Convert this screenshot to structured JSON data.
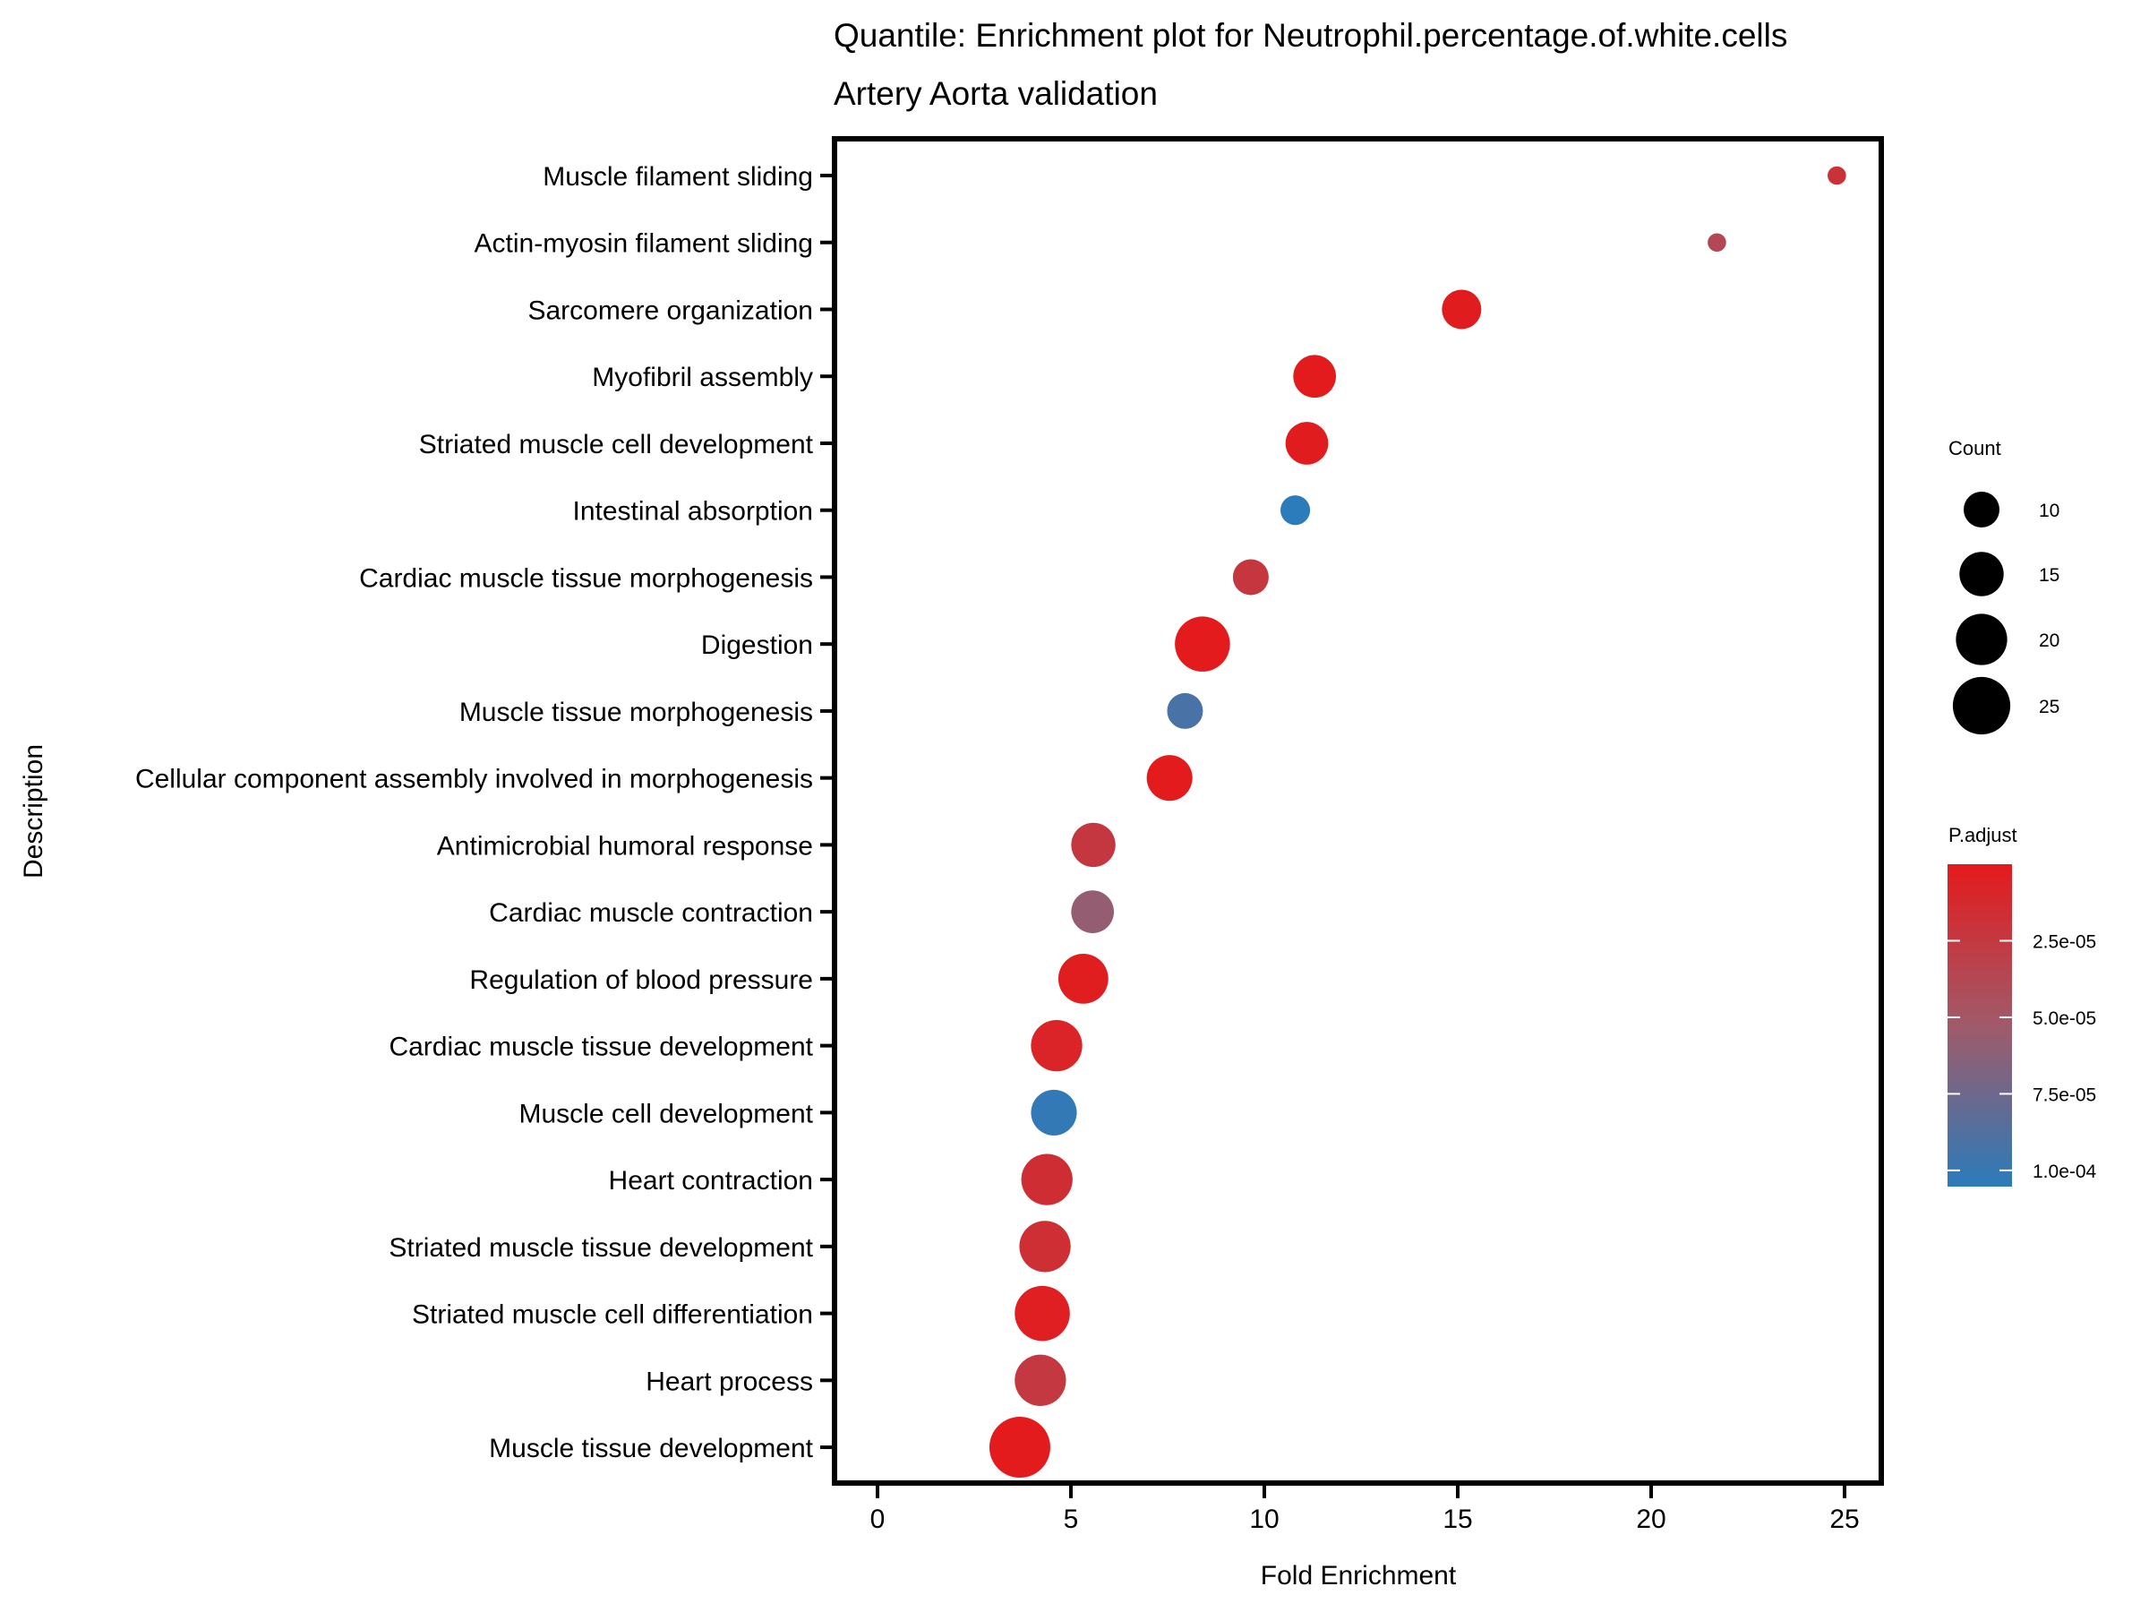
{
  "chart_data": {
    "type": "scatter",
    "title": "Quantile: Enrichment plot for Neutrophil.percentage.of.white.cells",
    "subtitle": "Artery Aorta validation",
    "xlabel": "Fold Enrichment",
    "ylabel": "Description",
    "xlim": [
      -1.1,
      26
    ],
    "xticks": [
      0,
      5,
      10,
      15,
      20,
      25
    ],
    "xtick_labels": [
      "0",
      "5",
      "10",
      "15",
      "20",
      "25"
    ],
    "grid": false,
    "points": [
      {
        "description": "Muscle filament sliding",
        "fold_enrichment": 24.8,
        "count": 3,
        "p_adjust": 2e-05
      },
      {
        "description": "Actin-myosin filament sliding",
        "fold_enrichment": 21.7,
        "count": 3,
        "p_adjust": 3.8e-05
      },
      {
        "description": "Sarcomere organization",
        "fold_enrichment": 15.1,
        "count": 12,
        "p_adjust": 2e-06
      },
      {
        "description": "Myofibril assembly",
        "fold_enrichment": 11.3,
        "count": 14,
        "p_adjust": 1e-06
      },
      {
        "description": "Striated muscle cell development",
        "fold_enrichment": 11.1,
        "count": 14,
        "p_adjust": 2e-06
      },
      {
        "description": "Intestinal absorption",
        "fold_enrichment": 10.8,
        "count": 7,
        "p_adjust": 0.000105
      },
      {
        "description": "Cardiac muscle tissue morphogenesis",
        "fold_enrichment": 9.65,
        "count": 10,
        "p_adjust": 2.3e-05
      },
      {
        "description": "Digestion",
        "fold_enrichment": 8.4,
        "count": 23,
        "p_adjust": 5e-07
      },
      {
        "description": "Muscle tissue morphogenesis",
        "fold_enrichment": 7.95,
        "count": 10,
        "p_adjust": 9.2e-05
      },
      {
        "description": "Cellular component assembly involved in morphogenesis",
        "fold_enrichment": 7.55,
        "count": 16,
        "p_adjust": 1e-06
      },
      {
        "description": "Antimicrobial humoral response",
        "fold_enrichment": 5.58,
        "count": 15,
        "p_adjust": 2.4e-05
      },
      {
        "description": "Cardiac muscle contraction",
        "fold_enrichment": 5.56,
        "count": 14,
        "p_adjust": 5.8e-05
      },
      {
        "description": "Regulation of blood pressure",
        "fold_enrichment": 5.32,
        "count": 19,
        "p_adjust": 3e-06
      },
      {
        "description": "Cardiac muscle tissue development",
        "fold_enrichment": 4.63,
        "count": 20,
        "p_adjust": 8e-06
      },
      {
        "description": "Muscle cell development",
        "fold_enrichment": 4.56,
        "count": 16,
        "p_adjust": 0.000102
      },
      {
        "description": "Heart contraction",
        "fold_enrichment": 4.38,
        "count": 20,
        "p_adjust": 1.6e-05
      },
      {
        "description": "Striated muscle tissue development",
        "fold_enrichment": 4.33,
        "count": 20,
        "p_adjust": 1.7e-05
      },
      {
        "description": "Striated muscle cell differentiation",
        "fold_enrichment": 4.26,
        "count": 23,
        "p_adjust": 4e-06
      },
      {
        "description": "Heart process",
        "fold_enrichment": 4.21,
        "count": 20,
        "p_adjust": 2.5e-05
      },
      {
        "description": "Muscle tissue development",
        "fold_enrichment": 3.68,
        "count": 28,
        "p_adjust": 1e-06
      }
    ],
    "legend": {
      "placement": "right",
      "size": {
        "title": "Count",
        "breaks": [
          10,
          15,
          20,
          25
        ],
        "labels": [
          "10",
          "15",
          "20",
          "25"
        ]
      },
      "color": {
        "title": "P.adjust",
        "range": [
          0,
          0.0001053
        ],
        "breaks": [
          2.5e-05,
          5e-05,
          7.5e-05,
          0.0001
        ],
        "labels": [
          "2.5e-05",
          "5.0e-05",
          "7.5e-05",
          "1.0e-04"
        ],
        "low_color": "#e41a1c",
        "high_color": "#2b7bba"
      }
    }
  }
}
